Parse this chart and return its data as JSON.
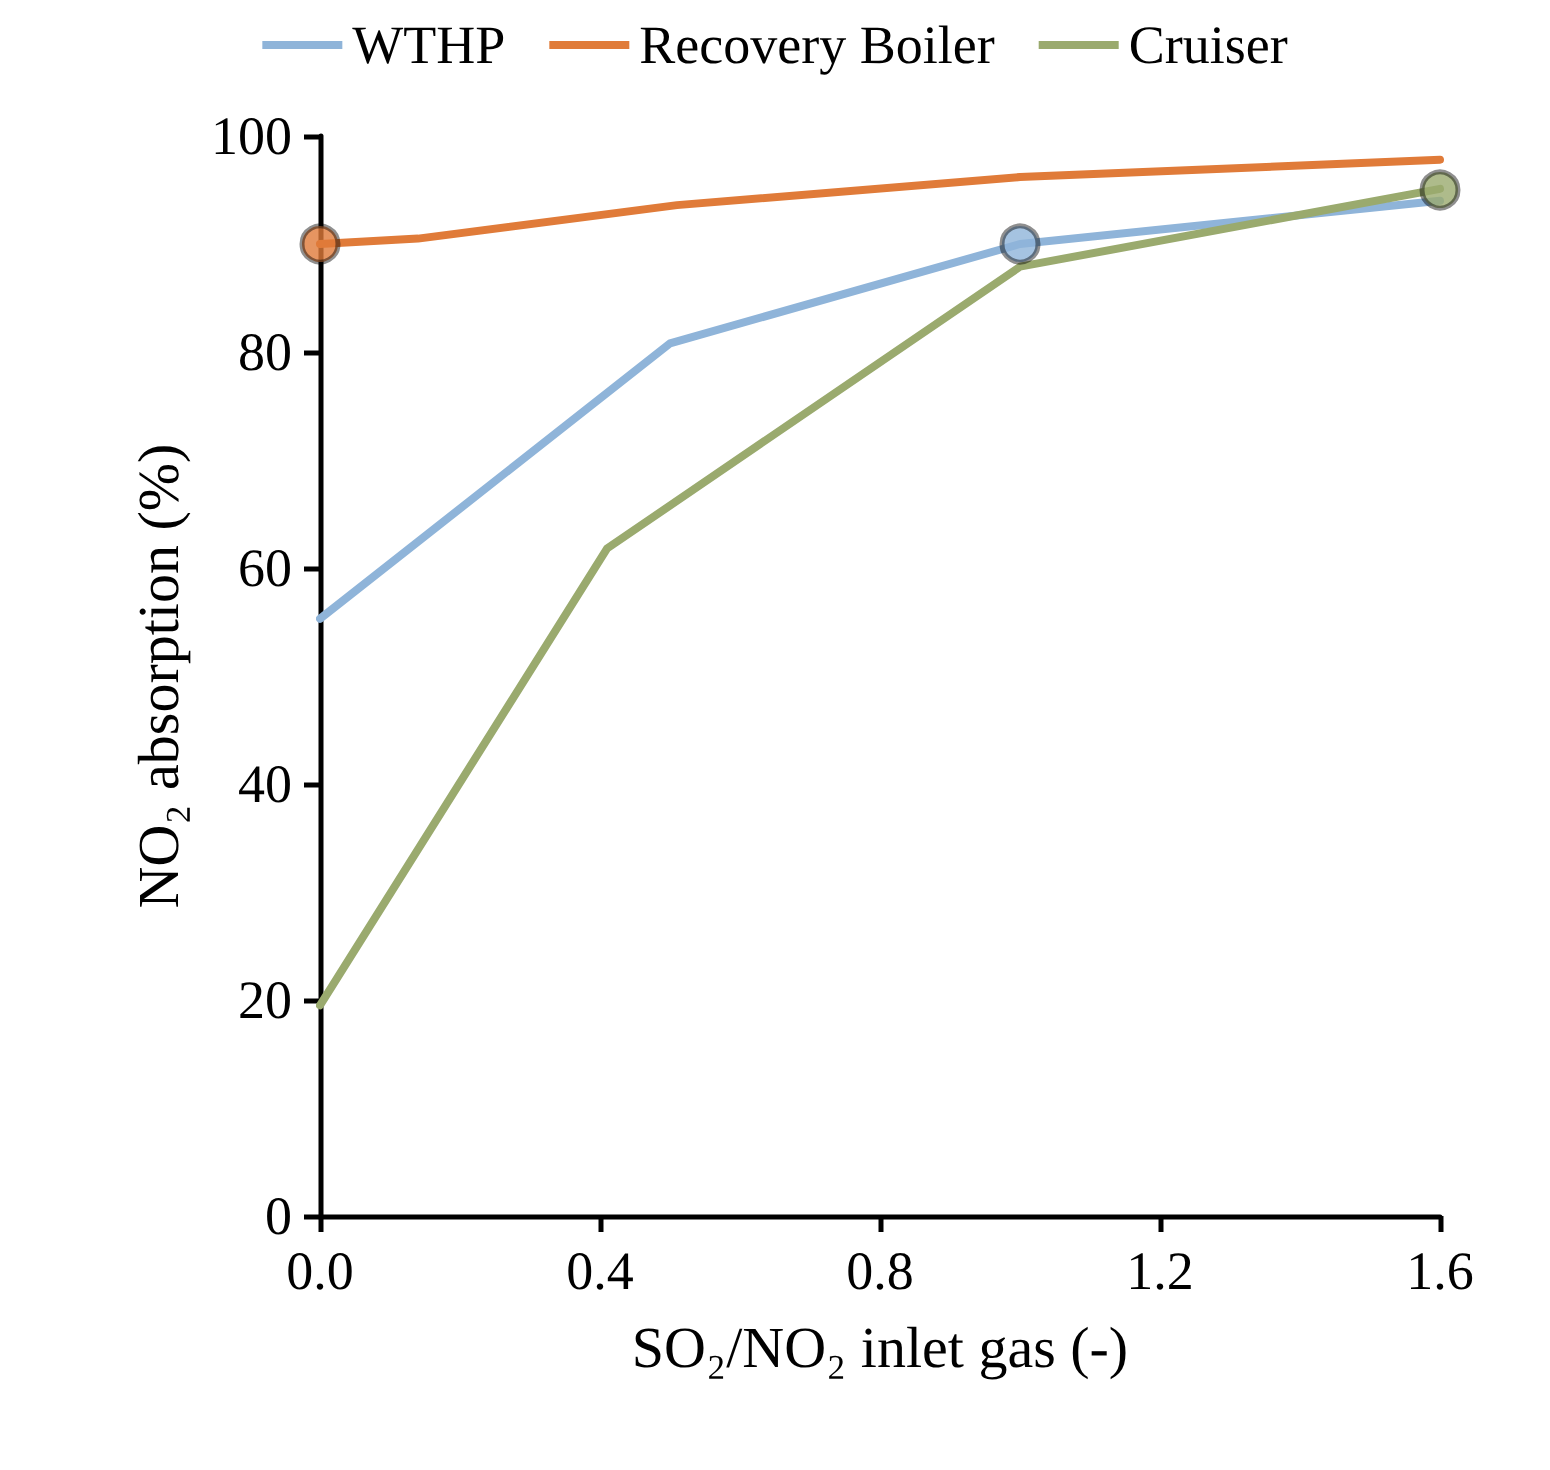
{
  "chart_data": {
    "type": "line",
    "xlabel": "SO₂/NO₂ inlet gas (-)",
    "ylabel": "NO₂ absorption (%)",
    "xlim": [
      0,
      1.6
    ],
    "xticks": [
      {
        "value": 0,
        "label": "0.0"
      },
      {
        "value": 0.4,
        "label": "0.4"
      },
      {
        "value": 0.8,
        "label": "0.8"
      },
      {
        "value": 1.2,
        "label": "1.2"
      },
      {
        "value": 1.6,
        "label": "1.6"
      }
    ],
    "ylim": [
      0,
      100
    ],
    "yticks": [
      0,
      20,
      40,
      60,
      80,
      100
    ],
    "grid": false,
    "legend": "top",
    "marker": "none",
    "line_style": "solid",
    "series": [
      {
        "name": "WTHP",
        "color": "#8fb4d9",
        "x": [
          0,
          0.5,
          1.0,
          1.6
        ],
        "values": [
          55.3,
          80.8,
          90.0,
          94.0
        ]
      },
      {
        "name": "Recovery Boiler",
        "color": "#e07b39",
        "x": [
          0,
          0.14,
          0.51,
          1.0,
          1.6
        ],
        "values": [
          90.0,
          90.5,
          93.6,
          96.2,
          97.8
        ]
      },
      {
        "name": "Cruiser",
        "color": "#9aaa6e",
        "x": [
          0,
          0.41,
          1.0,
          1.6
        ],
        "values": [
          19.5,
          61.8,
          87.9,
          95.1
        ]
      },
      {
        "type": "scatter",
        "marker": "circle",
        "x": [
          0,
          1.0,
          1.6
        ],
        "values": [
          90.0,
          90.0,
          95.0
        ],
        "colors": [
          "#e07b39",
          "#8fb4d9",
          "#9aaa6e"
        ]
      }
    ]
  }
}
